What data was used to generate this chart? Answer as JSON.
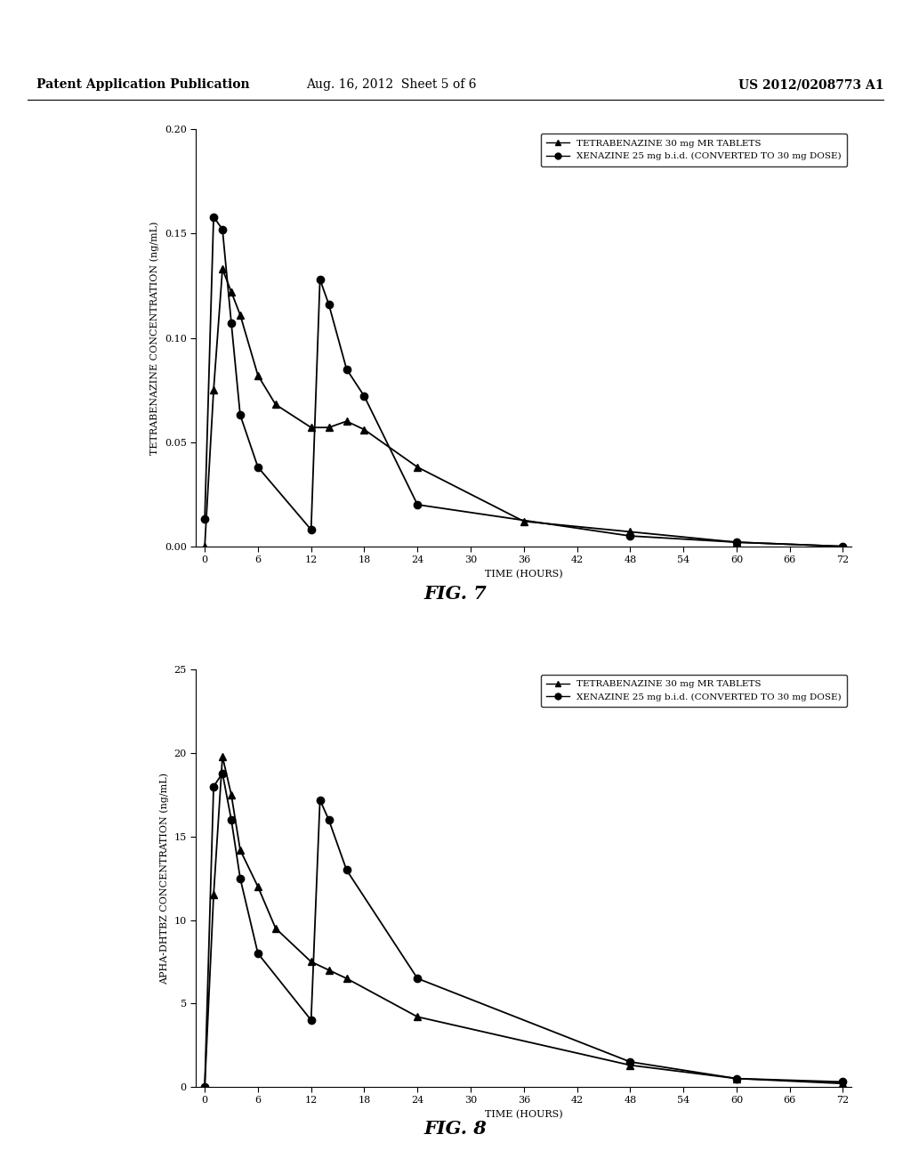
{
  "header_left": "Patent Application Publication",
  "header_middle": "Aug. 16, 2012  Sheet 5 of 6",
  "header_right": "US 2012/0208773 A1",
  "fig7": {
    "title": "FIG. 7",
    "xlabel": "TIME (HOURS)",
    "ylabel": "TETRABENAZINE CONCENTRATION (ng/mL)",
    "ylim": [
      0.0,
      0.2
    ],
    "yticks": [
      0.0,
      0.05,
      0.1,
      0.15,
      0.2
    ],
    "xticks": [
      0,
      6,
      12,
      18,
      24,
      30,
      36,
      42,
      48,
      54,
      60,
      66,
      72
    ],
    "legend1": "TETRABENAZINE 30 mg MR TABLETS",
    "legend2": "XENAZINE 25 mg b.i.d. (CONVERTED TO 30 mg DOSE)",
    "series1_x": [
      0,
      1,
      2,
      3,
      4,
      6,
      8,
      12,
      14,
      16,
      18,
      24,
      36,
      48,
      60,
      72
    ],
    "series1_y": [
      0.0,
      0.075,
      0.133,
      0.122,
      0.111,
      0.082,
      0.068,
      0.057,
      0.057,
      0.06,
      0.056,
      0.038,
      0.012,
      0.007,
      0.002,
      0.0
    ],
    "series2_x": [
      0,
      1,
      2,
      3,
      4,
      6,
      12,
      13,
      14,
      16,
      18,
      24,
      48,
      60,
      72
    ],
    "series2_y": [
      0.013,
      0.158,
      0.152,
      0.107,
      0.063,
      0.038,
      0.008,
      0.128,
      0.116,
      0.085,
      0.072,
      0.02,
      0.005,
      0.002,
      0.0
    ]
  },
  "fig8": {
    "title": "FIG. 8",
    "xlabel": "TIME (HOURS)",
    "ylabel": "APHA-DHTBZ CONCENTRATION (ng/mL)",
    "ylim": [
      0,
      25
    ],
    "yticks": [
      0,
      5,
      10,
      15,
      20,
      25
    ],
    "xticks": [
      0,
      6,
      12,
      18,
      24,
      30,
      36,
      42,
      48,
      54,
      60,
      66,
      72
    ],
    "legend1": "TETRABENAZINE 30 mg MR TABLETS",
    "legend2": "XENAZINE 25 mg b.i.d. (CONVERTED TO 30 mg DOSE)",
    "series1_x": [
      0,
      1,
      2,
      3,
      4,
      6,
      8,
      12,
      14,
      16,
      24,
      48,
      60,
      72
    ],
    "series1_y": [
      0.0,
      11.5,
      19.8,
      17.5,
      14.2,
      12.0,
      9.5,
      7.5,
      7.0,
      6.5,
      4.2,
      1.3,
      0.5,
      0.2
    ],
    "series2_x": [
      0,
      1,
      2,
      3,
      4,
      6,
      12,
      13,
      14,
      16,
      24,
      48,
      60,
      72
    ],
    "series2_y": [
      0.0,
      18.0,
      18.8,
      16.0,
      12.5,
      8.0,
      4.0,
      17.2,
      16.0,
      13.0,
      6.5,
      1.5,
      0.5,
      0.3
    ]
  },
  "background_color": "#ffffff",
  "line_color": "#000000",
  "marker_triangle": "^",
  "marker_circle": "o",
  "marker_size": 6,
  "line_width": 1.3,
  "font_size_label": 8,
  "font_size_tick": 8,
  "font_size_header": 10,
  "font_size_legend": 7.5,
  "font_size_fig_title": 15
}
